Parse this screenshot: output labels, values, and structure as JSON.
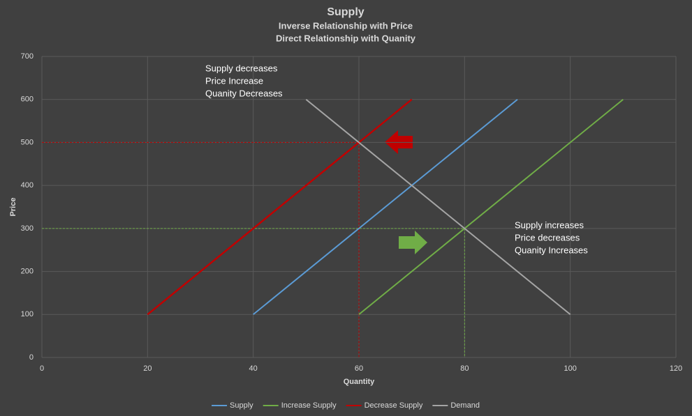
{
  "chart_data": {
    "type": "line",
    "title": "Supply",
    "subtitle": [
      "Inverse Relationship with Price",
      "Direct Relationship with Quanity"
    ],
    "x_label": "Quantity",
    "y_label": "Price",
    "xlim": [
      0,
      120
    ],
    "xticks": [
      0,
      20,
      40,
      60,
      80,
      100,
      120
    ],
    "ylim": [
      0,
      700
    ],
    "yticks": [
      0,
      100,
      200,
      300,
      400,
      500,
      600,
      700
    ],
    "grid": true,
    "legend": "bottom",
    "series": [
      {
        "name": "Supply",
        "color": "#5b9bd5",
        "x": [
          40,
          90
        ],
        "values": [
          100,
          600
        ]
      },
      {
        "name": "Increase Supply",
        "color": "#70ad47",
        "x": [
          60,
          110
        ],
        "values": [
          100,
          600
        ]
      },
      {
        "name": "Decrease Supply",
        "color": "#c00000",
        "x": [
          20,
          70
        ],
        "values": [
          100,
          600
        ]
      },
      {
        "name": "Demand",
        "color": "#a5a5a5",
        "x": [
          50,
          100
        ],
        "values": [
          600,
          100
        ]
      }
    ],
    "guides": [
      {
        "x": 60,
        "y": 500,
        "color": "#c00000"
      },
      {
        "x": 80,
        "y": 300,
        "color": "#70ad47"
      }
    ],
    "annotations": [
      [
        "Supply decreases",
        "Price Increase",
        "Quanity Decreases"
      ],
      [
        "Supply increases",
        "Price decreases",
        "Quanity Increases"
      ]
    ]
  }
}
